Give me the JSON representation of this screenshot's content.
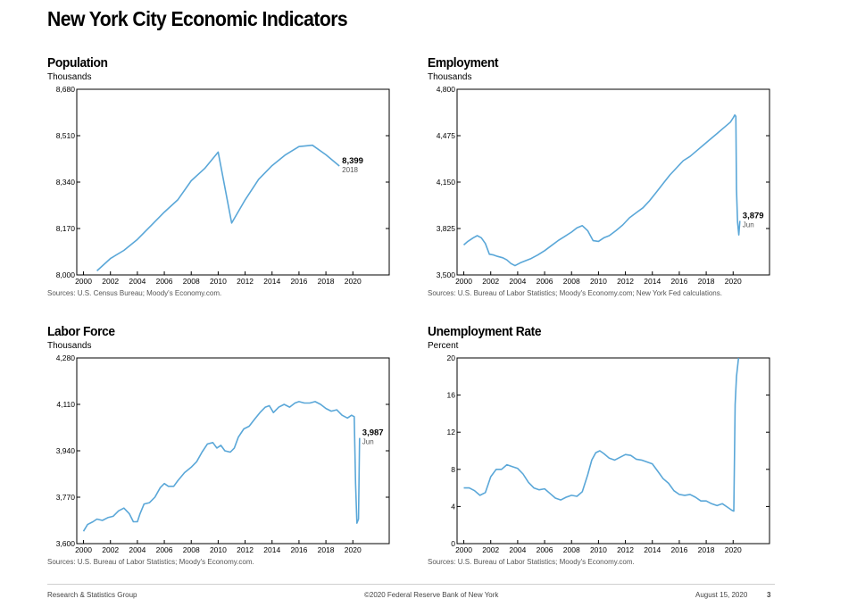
{
  "title": "New York City Economic Indicators",
  "footer": {
    "left": "Research & Statistics Group",
    "center": "©2020 Federal Reserve Bank of New York",
    "date": "August 15, 2020",
    "page": "3"
  },
  "colors": {
    "line": "#5aa7d8",
    "axis": "#000000",
    "text": "#000000",
    "source": "#555555"
  },
  "chart_data": [
    {
      "id": "population",
      "type": "line",
      "title": "Population",
      "ylabel": "Thousands",
      "source": "Sources: U.S. Census Bureau; Moody's Economy.com.",
      "xlim": [
        1999.5,
        2022.7
      ],
      "ylim": [
        8000,
        8680
      ],
      "yticks": [
        "8,000",
        "8,170",
        "8,340",
        "8,510",
        "8,680"
      ],
      "ytick_values": [
        8000,
        8170,
        8340,
        8510,
        8680
      ],
      "xticks": [
        "2000",
        "2002",
        "2004",
        "2006",
        "2008",
        "2010",
        "2012",
        "2014",
        "2016",
        "2018",
        "2020"
      ],
      "xtick_values": [
        2000,
        2002,
        2004,
        2006,
        2008,
        2010,
        2012,
        2014,
        2016,
        2018,
        2020
      ],
      "series": [
        {
          "x": [
            2001.0,
            2002.0,
            2003.0,
            2004.0,
            2005.0,
            2006.0,
            2007.0,
            2008.0,
            2009.0,
            2010.0,
            2011.0,
            2012.0,
            2013.0,
            2014.0,
            2015.0,
            2016.0,
            2017.0,
            2018.0,
            2019.0
          ],
          "y": [
            8015,
            8060,
            8090,
            8130,
            8180,
            8230,
            8275,
            8345,
            8390,
            8450,
            8190,
            8275,
            8350,
            8400,
            8440,
            8470,
            8475,
            8440,
            8399
          ]
        }
      ],
      "annotation": {
        "value": "8,399",
        "sub": "2018",
        "x": 2019.0,
        "y": 8399
      }
    },
    {
      "id": "employment",
      "type": "line",
      "title": "Employment",
      "ylabel": "Thousands",
      "source": "Sources: U.S. Bureau of Labor Statistics; Moody's Economy.com; New York Fed calculations.",
      "xlim": [
        1999.5,
        2022.7
      ],
      "ylim": [
        3500,
        4800
      ],
      "yticks": [
        "3,500",
        "3,825",
        "4,150",
        "4,475",
        "4,800"
      ],
      "ytick_values": [
        3500,
        3825,
        4150,
        4475,
        4800
      ],
      "xticks": [
        "2000",
        "2002",
        "2004",
        "2006",
        "2008",
        "2010",
        "2012",
        "2014",
        "2016",
        "2018",
        "2020"
      ],
      "xtick_values": [
        2000,
        2002,
        2004,
        2006,
        2008,
        2010,
        2012,
        2014,
        2016,
        2018,
        2020
      ],
      "series": [
        {
          "x": [
            2000.0,
            2000.3,
            2000.7,
            2001.0,
            2001.3,
            2001.6,
            2001.9,
            2002.2,
            2002.5,
            2002.9,
            2003.2,
            2003.5,
            2003.8,
            2004.2,
            2004.6,
            2005.0,
            2005.5,
            2006.0,
            2006.5,
            2007.0,
            2007.5,
            2008.0,
            2008.4,
            2008.8,
            2009.2,
            2009.6,
            2010.0,
            2010.4,
            2010.8,
            2011.3,
            2011.8,
            2012.3,
            2012.8,
            2013.3,
            2013.8,
            2014.3,
            2014.8,
            2015.3,
            2015.8,
            2016.3,
            2016.8,
            2017.3,
            2017.8,
            2018.3,
            2018.8,
            2019.3,
            2019.8,
            2020.0,
            2020.12,
            2020.2,
            2020.25,
            2020.33,
            2020.42,
            2020.5
          ],
          "y": [
            3710,
            3735,
            3760,
            3775,
            3760,
            3720,
            3645,
            3640,
            3630,
            3620,
            3605,
            3580,
            3565,
            3585,
            3600,
            3615,
            3640,
            3670,
            3705,
            3740,
            3770,
            3800,
            3830,
            3845,
            3810,
            3740,
            3735,
            3760,
            3775,
            3810,
            3850,
            3900,
            3935,
            3970,
            4020,
            4080,
            4140,
            4200,
            4250,
            4300,
            4330,
            4370,
            4410,
            4450,
            4490,
            4530,
            4570,
            4600,
            4620,
            4610,
            4100,
            3870,
            3780,
            3879
          ]
        }
      ],
      "annotation": {
        "value": "3,879",
        "sub": "Jun",
        "x": 2020.5,
        "y": 3879
      }
    },
    {
      "id": "labor-force",
      "type": "line",
      "title": "Labor Force",
      "ylabel": "Thousands",
      "source": "Sources: U.S. Bureau of Labor Statistics; Moody's Economy.com.",
      "xlim": [
        1999.5,
        2022.7
      ],
      "ylim": [
        3600,
        4280
      ],
      "yticks": [
        "3,600",
        "3,770",
        "3,940",
        "4,110",
        "4,280"
      ],
      "ytick_values": [
        3600,
        3770,
        3940,
        4110,
        4280
      ],
      "xticks": [
        "2000",
        "2002",
        "2004",
        "2006",
        "2008",
        "2010",
        "2012",
        "2014",
        "2016",
        "2018",
        "2020"
      ],
      "xtick_values": [
        2000,
        2002,
        2004,
        2006,
        2008,
        2010,
        2012,
        2014,
        2016,
        2018,
        2020
      ],
      "series": [
        {
          "x": [
            2000.0,
            2000.3,
            2000.7,
            2001.0,
            2001.4,
            2001.8,
            2002.2,
            2002.6,
            2003.0,
            2003.4,
            2003.7,
            2004.0,
            2004.2,
            2004.5,
            2004.9,
            2005.3,
            2005.7,
            2006.0,
            2006.3,
            2006.7,
            2007.0,
            2007.5,
            2008.0,
            2008.4,
            2008.8,
            2009.2,
            2009.6,
            2009.9,
            2010.2,
            2010.5,
            2010.9,
            2011.2,
            2011.5,
            2011.9,
            2012.3,
            2012.7,
            2013.1,
            2013.5,
            2013.8,
            2014.1,
            2014.5,
            2014.9,
            2015.3,
            2015.7,
            2016.0,
            2016.4,
            2016.8,
            2017.2,
            2017.6,
            2018.0,
            2018.4,
            2018.8,
            2019.2,
            2019.6,
            2019.9,
            2020.1,
            2020.2,
            2020.3,
            2020.42,
            2020.5
          ],
          "y": [
            3645,
            3670,
            3680,
            3690,
            3685,
            3695,
            3700,
            3720,
            3730,
            3710,
            3680,
            3680,
            3710,
            3745,
            3750,
            3770,
            3805,
            3820,
            3810,
            3810,
            3830,
            3860,
            3880,
            3900,
            3935,
            3965,
            3970,
            3950,
            3960,
            3940,
            3935,
            3950,
            3990,
            4020,
            4030,
            4055,
            4080,
            4100,
            4105,
            4080,
            4100,
            4110,
            4100,
            4115,
            4120,
            4115,
            4115,
            4120,
            4110,
            4095,
            4085,
            4090,
            4070,
            4060,
            4070,
            4065,
            3820,
            3675,
            3690,
            3987
          ]
        }
      ],
      "annotation": {
        "value": "3,987",
        "sub": "Jun",
        "x": 2020.5,
        "y": 3987
      }
    },
    {
      "id": "unemployment-rate",
      "type": "line",
      "title": "Unemployment Rate",
      "ylabel": "Percent",
      "source": "Sources: U.S. Bureau of Labor Statistics; Moody's Economy.com.",
      "xlim": [
        1999.5,
        2022.7
      ],
      "ylim": [
        0,
        20
      ],
      "yticks": [
        "0",
        "4",
        "8",
        "12",
        "16",
        "20"
      ],
      "ytick_values": [
        0,
        4,
        8,
        12,
        16,
        20
      ],
      "xticks": [
        "2000",
        "2002",
        "2004",
        "2006",
        "2008",
        "2010",
        "2012",
        "2014",
        "2016",
        "2018",
        "2020"
      ],
      "xtick_values": [
        2000,
        2002,
        2004,
        2006,
        2008,
        2010,
        2012,
        2014,
        2016,
        2018,
        2020
      ],
      "series": [
        {
          "x": [
            2000.0,
            2000.4,
            2000.8,
            2001.2,
            2001.6,
            2002.0,
            2002.4,
            2002.8,
            2003.2,
            2003.6,
            2004.0,
            2004.4,
            2004.8,
            2005.2,
            2005.6,
            2006.0,
            2006.4,
            2006.8,
            2007.2,
            2007.6,
            2008.0,
            2008.4,
            2008.8,
            2009.2,
            2009.5,
            2009.8,
            2010.1,
            2010.4,
            2010.8,
            2011.2,
            2011.6,
            2012.0,
            2012.4,
            2012.8,
            2013.2,
            2013.6,
            2014.0,
            2014.4,
            2014.8,
            2015.2,
            2015.6,
            2016.0,
            2016.4,
            2016.8,
            2017.2,
            2017.6,
            2018.0,
            2018.4,
            2018.8,
            2019.2,
            2019.6,
            2019.9,
            2020.05,
            2020.15,
            2020.25,
            2020.4
          ],
          "y": [
            6.0,
            6.0,
            5.7,
            5.2,
            5.5,
            7.2,
            8.0,
            8.0,
            8.5,
            8.3,
            8.1,
            7.5,
            6.6,
            6.0,
            5.8,
            5.9,
            5.4,
            4.9,
            4.7,
            5.0,
            5.2,
            5.1,
            5.6,
            7.4,
            9.0,
            9.8,
            10.0,
            9.7,
            9.2,
            9.0,
            9.3,
            9.6,
            9.5,
            9.1,
            9.0,
            8.8,
            8.6,
            7.8,
            7.0,
            6.5,
            5.7,
            5.3,
            5.2,
            5.3,
            5.0,
            4.6,
            4.6,
            4.3,
            4.1,
            4.3,
            3.9,
            3.6,
            3.5,
            15.0,
            18.0,
            20.0
          ]
        }
      ]
    }
  ]
}
